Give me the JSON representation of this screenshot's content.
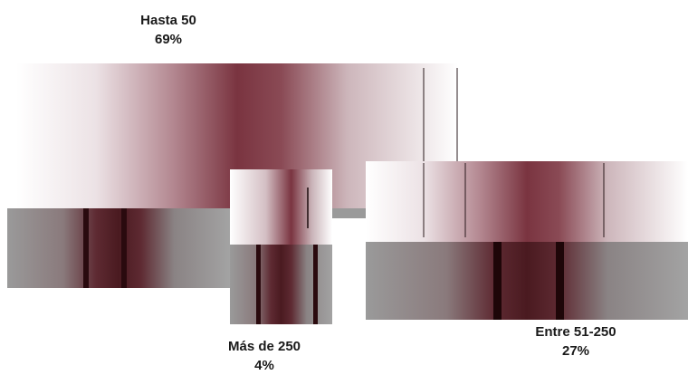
{
  "chart_data": {
    "type": "pie",
    "title": "",
    "slices": [
      {
        "label": "Hasta 50",
        "value": 69,
        "display": "69%"
      },
      {
        "label": "Entre 51-250",
        "value": 27,
        "display": "27%"
      },
      {
        "label": "Más de 250",
        "value": 4,
        "display": "4%"
      }
    ],
    "colors": {
      "maroon": "#6e2a33",
      "dark": "#2a0a0e",
      "gray": "#9a9a9a",
      "pale": "#f4eef0"
    },
    "legend": "none"
  }
}
